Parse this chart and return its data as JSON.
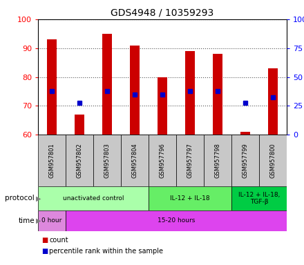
{
  "title": "GDS4948 / 10359293",
  "samples": [
    "GSM957801",
    "GSM957802",
    "GSM957803",
    "GSM957804",
    "GSM957796",
    "GSM957797",
    "GSM957798",
    "GSM957799",
    "GSM957800"
  ],
  "bar_bottom": [
    60,
    60,
    60,
    60,
    60,
    60,
    60,
    60,
    60
  ],
  "bar_top": [
    93,
    67,
    95,
    91,
    80,
    89,
    88,
    61,
    83
  ],
  "blue_dot_y": [
    75,
    71,
    75,
    74,
    74,
    75,
    75,
    71,
    73
  ],
  "ylim": [
    60,
    100
  ],
  "y2lim": [
    0,
    100
  ],
  "yticks": [
    60,
    70,
    80,
    90,
    100
  ],
  "y2ticks": [
    0,
    25,
    50,
    75,
    100
  ],
  "y2ticklabels": [
    "0",
    "25",
    "50",
    "75",
    "100%"
  ],
  "bar_color": "#cc0000",
  "dot_color": "#0000cc",
  "bg_color": "#ffffff",
  "plot_bg": "#ffffff",
  "sample_label_bg": "#c8c8c8",
  "grid_color": "#555555",
  "bar_width": 0.35,
  "protocol_groups": [
    {
      "label": "unactivated control",
      "start": 0,
      "end": 4,
      "color": "#aaffaa"
    },
    {
      "label": "IL-12 + IL-18",
      "start": 4,
      "end": 7,
      "color": "#66ee66"
    },
    {
      "label": "IL-12 + IL-18,\nTGF-β",
      "start": 7,
      "end": 9,
      "color": "#00cc44"
    }
  ],
  "time_groups": [
    {
      "label": "0 hour",
      "start": 0,
      "end": 1,
      "color": "#dd88dd"
    },
    {
      "label": "15-20 hours",
      "start": 1,
      "end": 9,
      "color": "#dd44ee"
    }
  ],
  "legend_items": [
    {
      "color": "#cc0000",
      "label": "count"
    },
    {
      "color": "#0000cc",
      "label": "percentile rank within the sample"
    }
  ],
  "protocol_label": "protocol",
  "time_label": "time"
}
